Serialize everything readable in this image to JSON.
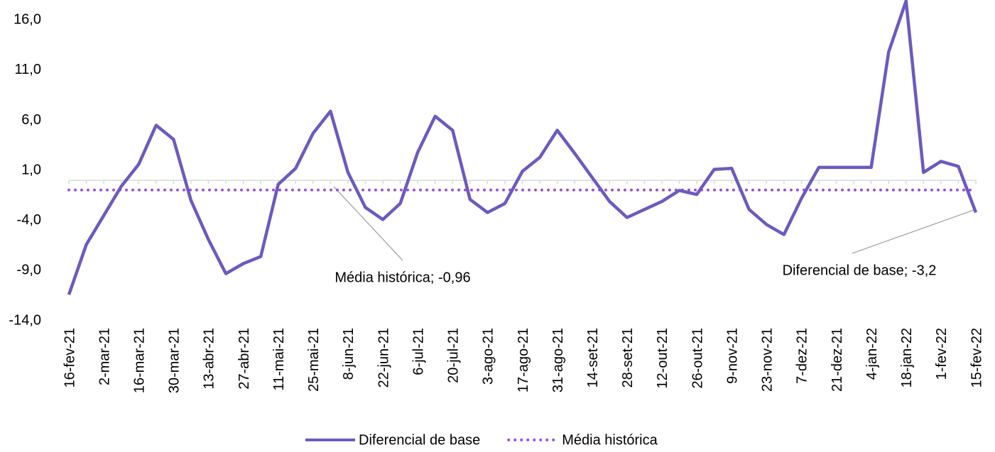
{
  "chart_data": {
    "type": "line",
    "categories": [
      "16-fev-21",
      null,
      "2-mar-21",
      null,
      "16-mar-21",
      null,
      "30-mar-21",
      null,
      "13-abr-21",
      null,
      "27-abr-21",
      null,
      "11-mai-21",
      null,
      "25-mai-21",
      null,
      "8-jun-21",
      null,
      "22-jun-21",
      null,
      "6-jul-21",
      null,
      "20-jul-21",
      null,
      "3-ago-21",
      null,
      "17-ago-21",
      null,
      "31-ago-21",
      null,
      "14-set-21",
      null,
      "28-set-21",
      null,
      "12-out-21",
      null,
      "26-out-21",
      null,
      "9-nov-21",
      null,
      "23-nov-21",
      null,
      "7-dez-21",
      null,
      "21-dez-21",
      null,
      "4-jan-22",
      null,
      "18-jan-22",
      null,
      "1-fev-22",
      null,
      "15-fev-22"
    ],
    "series": [
      {
        "name": "Diferencial de base",
        "color": "#6b5bbf",
        "style": "solid",
        "values": [
          -11.4,
          -6.4,
          -3.5,
          -0.6,
          1.6,
          5.5,
          4.1,
          -2.0,
          -5.9,
          -9.3,
          -8.3,
          -7.6,
          -0.4,
          1.2,
          4.7,
          6.9,
          0.8,
          -2.7,
          -3.9,
          -2.3,
          2.8,
          6.4,
          5.0,
          -1.9,
          -3.2,
          -2.3,
          0.9,
          2.3,
          5.0,
          2.7,
          0.3,
          -2.1,
          -3.7,
          -2.9,
          -2.1,
          -1.0,
          -1.4,
          1.1,
          1.2,
          -2.9,
          -4.4,
          -5.4,
          -1.8,
          1.3,
          1.3,
          1.3,
          1.3,
          12.8,
          17.9,
          0.8,
          1.9,
          1.4,
          -3.2
        ]
      },
      {
        "name": "Média histórica",
        "color": "#9b4fd6",
        "style": "dotted",
        "values": [
          -0.96,
          -0.96,
          -0.96,
          -0.96,
          -0.96,
          -0.96,
          -0.96,
          -0.96,
          -0.96,
          -0.96,
          -0.96,
          -0.96,
          -0.96,
          -0.96,
          -0.96,
          -0.96,
          -0.96,
          -0.96,
          -0.96,
          -0.96,
          -0.96,
          -0.96,
          -0.96,
          -0.96,
          -0.96,
          -0.96,
          -0.96,
          -0.96,
          -0.96,
          -0.96,
          -0.96,
          -0.96,
          -0.96,
          -0.96,
          -0.96,
          -0.96,
          -0.96,
          -0.96,
          -0.96,
          -0.96,
          -0.96,
          -0.96,
          -0.96,
          -0.96,
          -0.96,
          -0.96,
          -0.96,
          -0.96,
          -0.96,
          -0.96,
          -0.96,
          -0.96,
          -0.96
        ]
      }
    ],
    "ylim": [
      -14,
      18
    ],
    "yticks": [
      {
        "value": -14,
        "label": "-14,0"
      },
      {
        "value": -9,
        "label": "-9,0"
      },
      {
        "value": -4,
        "label": "-4,0"
      },
      {
        "value": 1,
        "label": "1,0"
      },
      {
        "value": 6,
        "label": "6,0"
      },
      {
        "value": 11,
        "label": "11,0"
      },
      {
        "value": 16,
        "label": "16,0"
      }
    ],
    "annotations": [
      "Média histórica; -0,96",
      "Diferencial de base; -3,2"
    ],
    "legend": "bottom"
  }
}
